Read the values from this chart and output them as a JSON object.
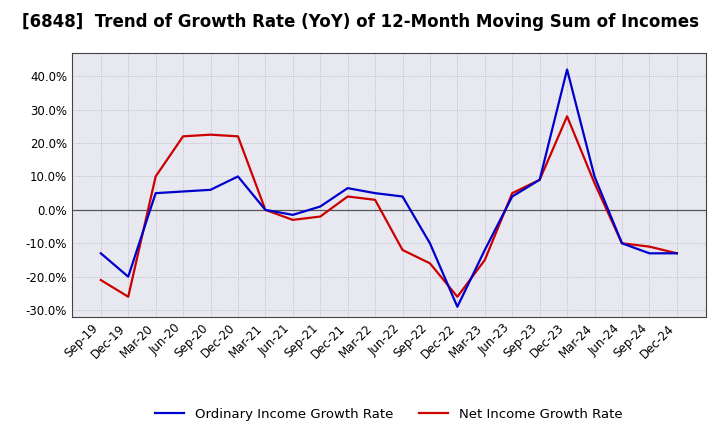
{
  "title": "[6848]  Trend of Growth Rate (YoY) of 12-Month Moving Sum of Incomes",
  "x_labels": [
    "Sep-19",
    "Dec-19",
    "Mar-20",
    "Jun-20",
    "Sep-20",
    "Dec-20",
    "Mar-21",
    "Jun-21",
    "Sep-21",
    "Dec-21",
    "Mar-22",
    "Jun-22",
    "Sep-22",
    "Dec-22",
    "Mar-23",
    "Jun-23",
    "Sep-23",
    "Dec-23",
    "Mar-24",
    "Jun-24",
    "Sep-24",
    "Dec-24"
  ],
  "ordinary_income": [
    -13,
    -20,
    5,
    5.5,
    6,
    10,
    0,
    -1.5,
    1,
    6.5,
    5,
    4,
    -10,
    -29,
    -12,
    4,
    9,
    42,
    10,
    -10,
    -13,
    -13
  ],
  "net_income": [
    -21,
    -26,
    10,
    22,
    22.5,
    22,
    0,
    -3,
    -2,
    4,
    3,
    -12,
    -16,
    -26,
    -15,
    5,
    9,
    28,
    8,
    -10,
    -11,
    -13
  ],
  "ordinary_color": "#0000cc",
  "net_color": "#cc0000",
  "ylim_min": -32,
  "ylim_max": 47,
  "yticks": [
    -30,
    -20,
    -10,
    0,
    10,
    20,
    30,
    40
  ],
  "legend_ordinary": "Ordinary Income Growth Rate",
  "legend_net": "Net Income Growth Rate",
  "bg_color": "#ffffff",
  "plot_bg_color": "#e8e8f0",
  "grid_color": "#b0b0c0",
  "zero_line_color": "#555555",
  "linewidth": 1.6,
  "title_fontsize": 12,
  "tick_fontsize": 8.5,
  "legend_fontsize": 9.5
}
